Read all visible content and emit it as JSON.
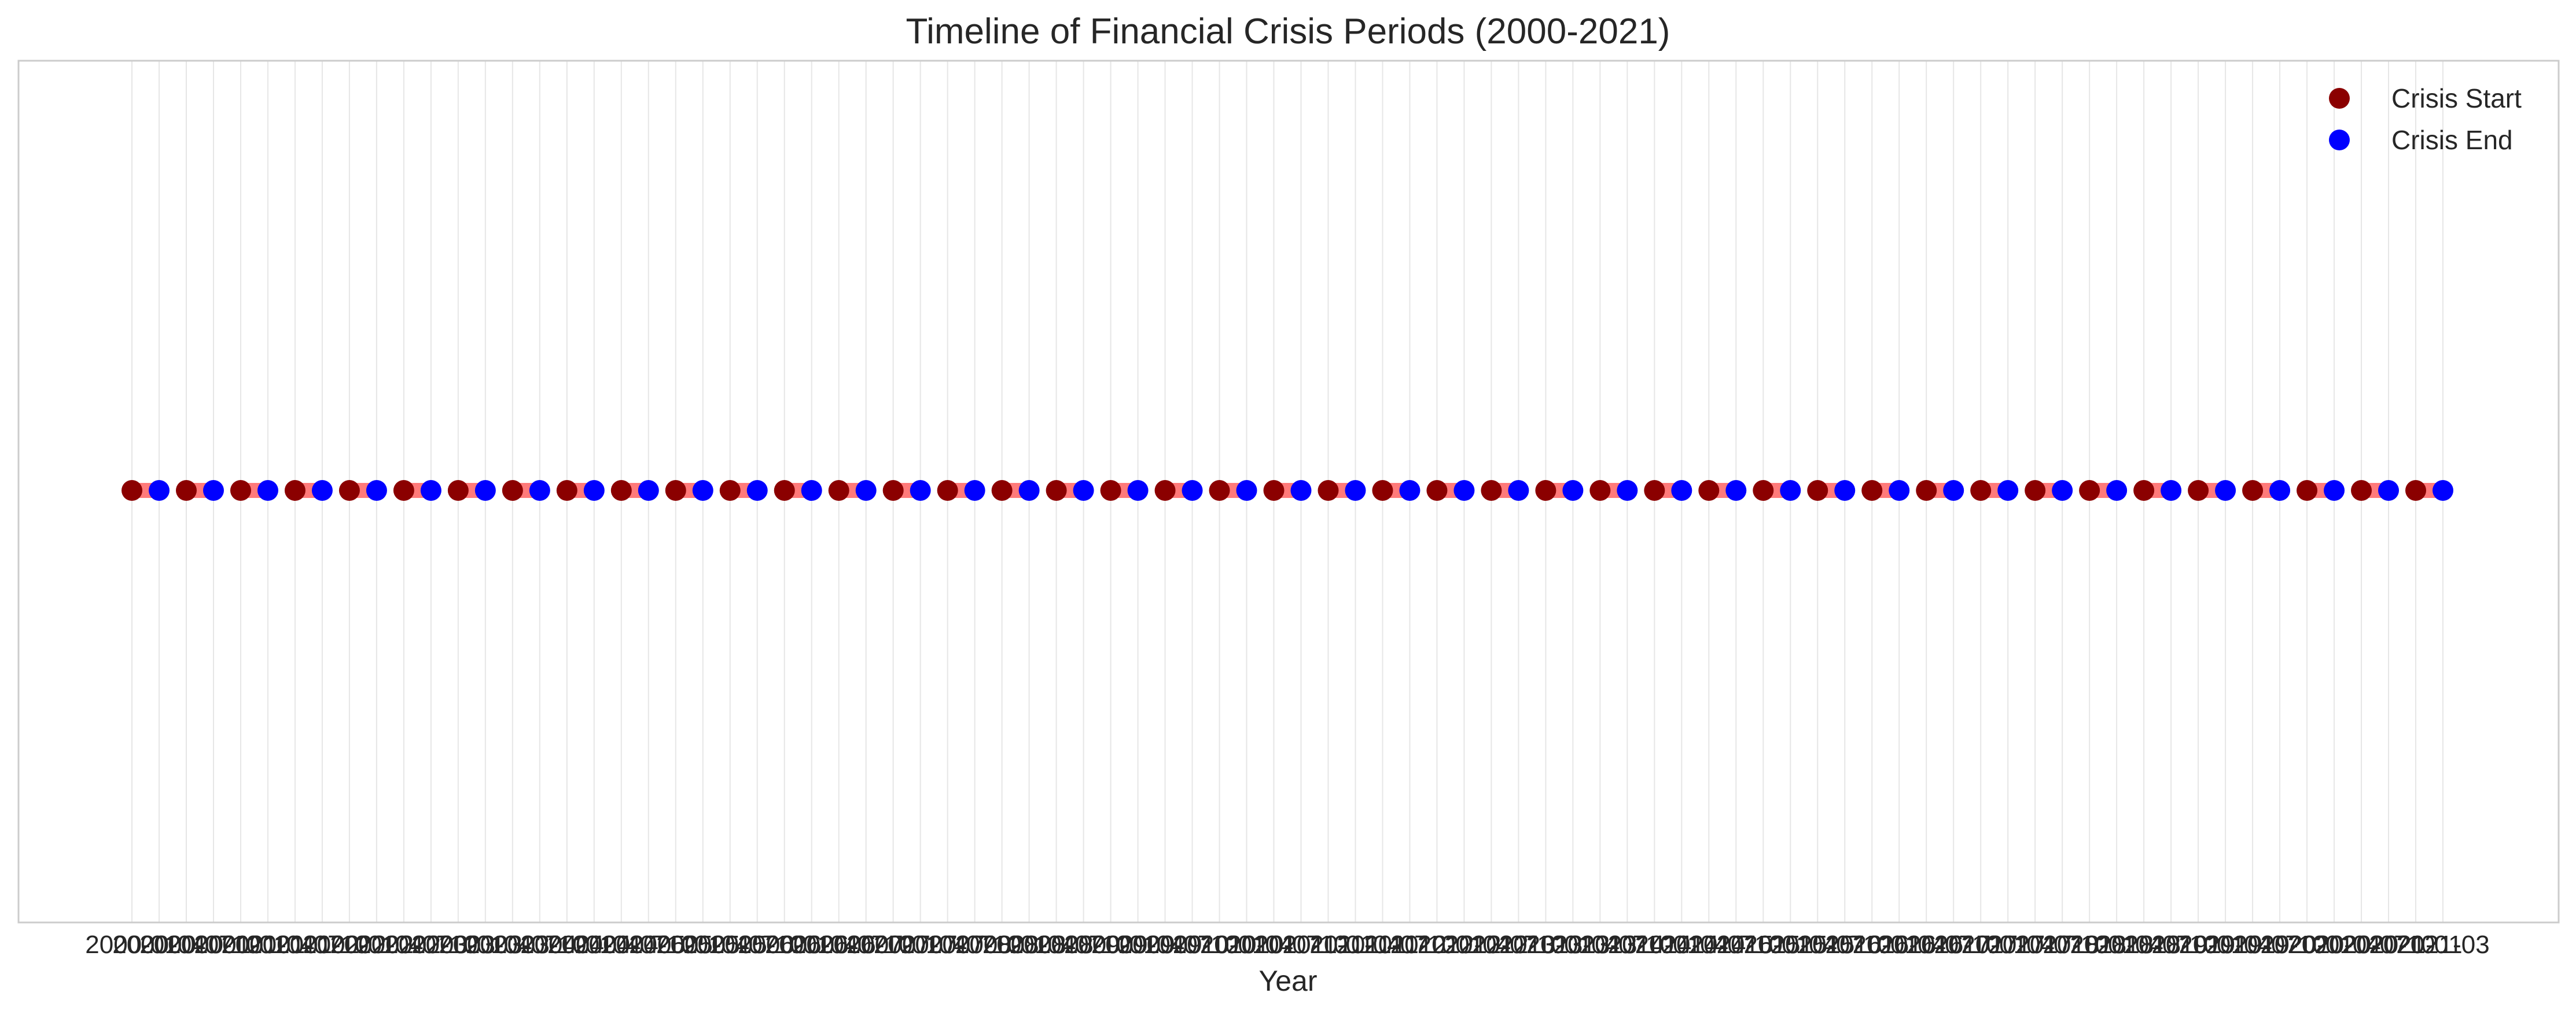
{
  "chart_data": {
    "type": "scatter",
    "title": "Timeline of Financial Crisis Periods (2000-2021)",
    "xlabel": "Year",
    "ylabel": "",
    "grid": true,
    "legend_position": "top-right",
    "series": [
      {
        "name": "Crisis Start",
        "color": "#8b0000"
      },
      {
        "name": "Crisis End",
        "color": "#0000ff"
      }
    ],
    "connector_color": "#ff6b6b",
    "x_tick_labels": [
      "2000-01",
      "2000-04",
      "2000-07",
      "2000-10",
      "2001-01",
      "2001-04",
      "2001-07",
      "2001-10",
      "2002-01",
      "2002-04",
      "2002-07",
      "2002-10",
      "2003-01",
      "2003-04",
      "2003-07",
      "2003-10",
      "2004-01",
      "2004-04",
      "2004-07",
      "2004-10",
      "2005-01",
      "2005-04",
      "2005-07",
      "2005-10",
      "2006-01",
      "2006-04",
      "2006-07",
      "2006-10",
      "2007-01",
      "2007-04",
      "2007-07",
      "2007-10",
      "2008-01",
      "2008-04",
      "2008-07",
      "2008-10",
      "2009-01",
      "2009-04",
      "2009-07",
      "2009-10",
      "2010-01",
      "2010-04",
      "2010-07",
      "2010-10",
      "2011-01",
      "2011-04",
      "2011-07",
      "2011-10",
      "2012-01",
      "2012-04",
      "2012-07",
      "2012-10",
      "2013-01",
      "2013-04",
      "2013-07",
      "2013-10",
      "2014-01",
      "2014-04",
      "2014-07",
      "2014-10",
      "2015-01",
      "2015-04",
      "2015-07",
      "2015-10",
      "2016-01",
      "2016-04",
      "2016-07",
      "2016-10",
      "2017-01",
      "2017-04",
      "2017-07",
      "2017-10",
      "2018-01",
      "2018-04",
      "2018-07",
      "2018-10",
      "2019-01",
      "2019-04",
      "2019-07",
      "2019-10",
      "2020-01",
      "2020-04",
      "2020-07",
      "2020-10",
      "2021-01",
      "2021-03"
    ],
    "periods": [
      {
        "start": "2000-01",
        "end": "2000-04"
      },
      {
        "start": "2000-07",
        "end": "2000-10"
      },
      {
        "start": "2001-01",
        "end": "2001-04"
      },
      {
        "start": "2001-07",
        "end": "2001-10"
      },
      {
        "start": "2002-01",
        "end": "2002-04"
      },
      {
        "start": "2002-07",
        "end": "2002-10"
      },
      {
        "start": "2003-01",
        "end": "2003-04"
      },
      {
        "start": "2003-07",
        "end": "2003-10"
      },
      {
        "start": "2004-01",
        "end": "2004-04"
      },
      {
        "start": "2004-07",
        "end": "2004-10"
      },
      {
        "start": "2005-01",
        "end": "2005-04"
      },
      {
        "start": "2005-07",
        "end": "2005-10"
      },
      {
        "start": "2006-01",
        "end": "2006-04"
      },
      {
        "start": "2006-07",
        "end": "2006-10"
      },
      {
        "start": "2007-01",
        "end": "2007-04"
      },
      {
        "start": "2007-07",
        "end": "2007-10"
      },
      {
        "start": "2008-01",
        "end": "2008-04"
      },
      {
        "start": "2008-07",
        "end": "2008-10"
      },
      {
        "start": "2009-01",
        "end": "2009-04"
      },
      {
        "start": "2009-07",
        "end": "2009-10"
      },
      {
        "start": "2010-01",
        "end": "2010-04"
      },
      {
        "start": "2010-07",
        "end": "2010-10"
      },
      {
        "start": "2011-01",
        "end": "2011-04"
      },
      {
        "start": "2011-07",
        "end": "2011-10"
      },
      {
        "start": "2012-01",
        "end": "2012-04"
      },
      {
        "start": "2012-07",
        "end": "2012-10"
      },
      {
        "start": "2013-01",
        "end": "2013-04"
      },
      {
        "start": "2013-07",
        "end": "2013-10"
      },
      {
        "start": "2014-01",
        "end": "2014-04"
      },
      {
        "start": "2014-07",
        "end": "2014-10"
      },
      {
        "start": "2015-01",
        "end": "2015-04"
      },
      {
        "start": "2015-07",
        "end": "2015-10"
      },
      {
        "start": "2016-01",
        "end": "2016-04"
      },
      {
        "start": "2016-07",
        "end": "2016-10"
      },
      {
        "start": "2017-01",
        "end": "2017-04"
      },
      {
        "start": "2017-07",
        "end": "2017-10"
      },
      {
        "start": "2018-01",
        "end": "2018-04"
      },
      {
        "start": "2018-07",
        "end": "2018-10"
      },
      {
        "start": "2019-01",
        "end": "2019-04"
      },
      {
        "start": "2019-07",
        "end": "2019-10"
      },
      {
        "start": "2020-01",
        "end": "2020-04"
      },
      {
        "start": "2020-07",
        "end": "2020-10"
      },
      {
        "start": "2021-01",
        "end": "2021-03"
      }
    ]
  }
}
